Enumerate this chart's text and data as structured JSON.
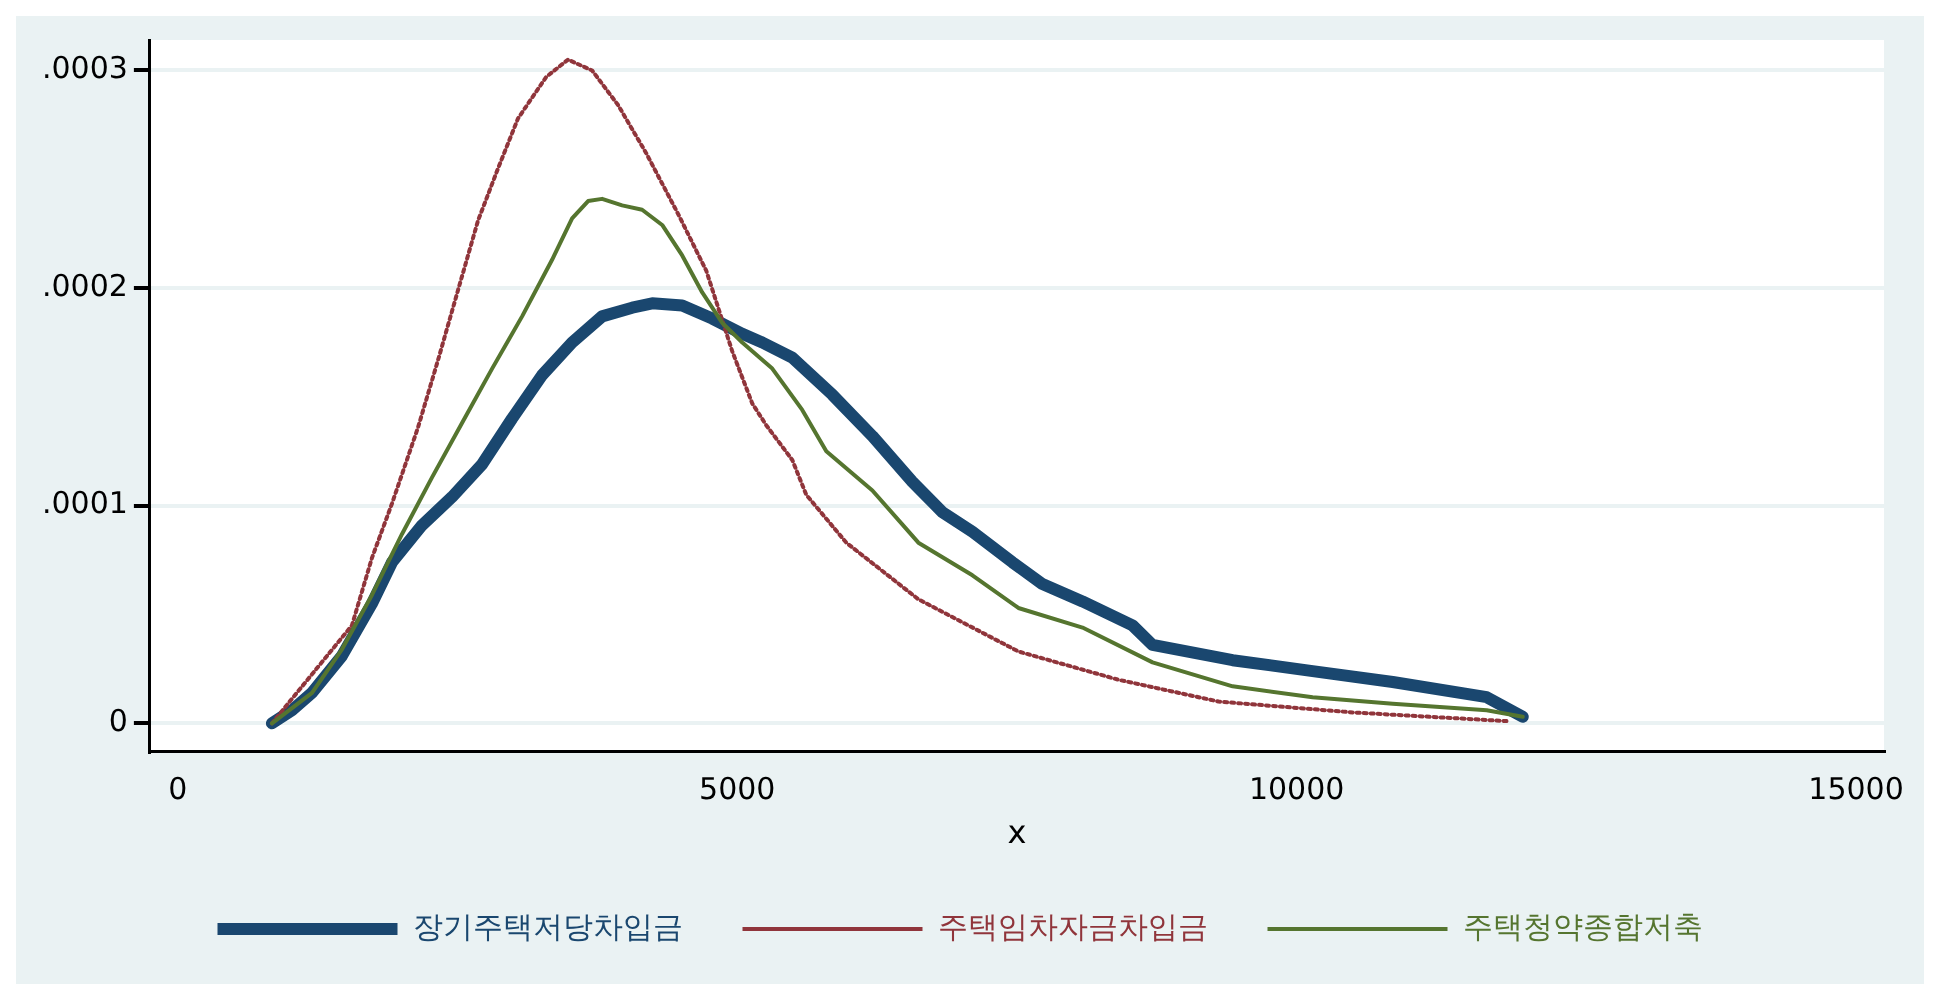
{
  "chart_data": {
    "type": "line",
    "xlabel": "x",
    "xlim": [
      -250,
      15250
    ],
    "xticks": [
      0,
      5000,
      10000,
      15000
    ],
    "ylim": [
      -1.3e-05,
      0.000314
    ],
    "yticks": [
      0,
      {
        "value": 0.0001,
        "label": ".0001"
      },
      {
        "value": 0.0002,
        "label": ".0002"
      },
      {
        "value": 0.0003,
        "label": ".0003"
      }
    ],
    "grid": "y",
    "legend": "bottom",
    "marker": "none",
    "series": [
      {
        "name": "장기주택저당차입금",
        "color": "#1a476f",
        "line_style": "solid",
        "x": [
          841,
          1020,
          1199,
          1467,
          1735,
          1914,
          2182,
          2451,
          2719,
          2987,
          3256,
          3524,
          3792,
          4061,
          4240,
          4508,
          4776,
          5045,
          5224,
          5492,
          5850,
          6208,
          6565,
          6834,
          7102,
          7460,
          7728,
          8086,
          8533,
          8712,
          9428,
          10143,
          10859,
          11699,
          12021
        ],
        "values": [
          0,
          6e-06,
          1.4e-05,
          3.1e-05,
          5.5e-05,
          7.4e-05,
          9.1e-05,
          0.000104,
          0.000119,
          0.00014,
          0.00016,
          0.000175,
          0.000187,
          0.000191,
          0.000193,
          0.000192,
          0.000186,
          0.000179,
          0.000175,
          0.000168,
          0.000151,
          0.000132,
          0.000111,
          9.7e-05,
          8.8e-05,
          7.4e-05,
          6.4e-05,
          5.6e-05,
          4.5e-05,
          3.6e-05,
          2.9e-05,
          2.4e-05,
          1.9e-05,
          1.2e-05,
          3e-06
        ]
      },
      {
        "name": "주택임차자금차입금",
        "color": "#90353b",
        "line_style": "dotted",
        "x": [
          841,
          1556,
          1735,
          1914,
          2147,
          2326,
          2504,
          2683,
          2862,
          3041,
          3292,
          3488,
          3703,
          3936,
          4186,
          4472,
          4723,
          4955,
          5134,
          5259,
          5492,
          5617,
          5975,
          6619,
          7513,
          8408,
          9302,
          10501,
          11878
        ],
        "values": [
          0,
          4.5e-05,
          7.6e-05,
          0.000101,
          0.000136,
          0.000167,
          0.000199,
          0.000231,
          0.000255,
          0.000278,
          0.000297,
          0.000305,
          0.0003,
          0.000284,
          0.000262,
          0.000234,
          0.000208,
          0.000171,
          0.000147,
          0.000137,
          0.000121,
          0.000105,
          8.3e-05,
          5.7e-05,
          3.3e-05,
          2e-05,
          1e-05,
          5e-06,
          1e-06
        ]
      },
      {
        "name": "주택청약종합저축",
        "color": "#55752f",
        "line_style": "solid",
        "x": [
          841,
          1199,
          1467,
          1735,
          2004,
          2272,
          2540,
          2809,
          3077,
          3345,
          3524,
          3667,
          3792,
          3971,
          4150,
          4329,
          4508,
          4687,
          4866,
          5045,
          5313,
          5581,
          5796,
          6208,
          6619,
          7102,
          7513,
          8086,
          8712,
          9428,
          10143,
          10859,
          11699,
          12021
        ],
        "values": [
          0,
          1.4e-05,
          3.4e-05,
          5.9e-05,
          8.7e-05,
          0.000113,
          0.000138,
          0.000163,
          0.000187,
          0.000213,
          0.000232,
          0.00024,
          0.000241,
          0.000238,
          0.000236,
          0.000229,
          0.000215,
          0.000198,
          0.000184,
          0.000175,
          0.000163,
          0.000144,
          0.000125,
          0.000107,
          8.3e-05,
          6.8e-05,
          5.3e-05,
          4.4e-05,
          2.8e-05,
          1.7e-05,
          1.2e-05,
          9e-06,
          6e-06,
          3e-06
        ]
      }
    ]
  }
}
